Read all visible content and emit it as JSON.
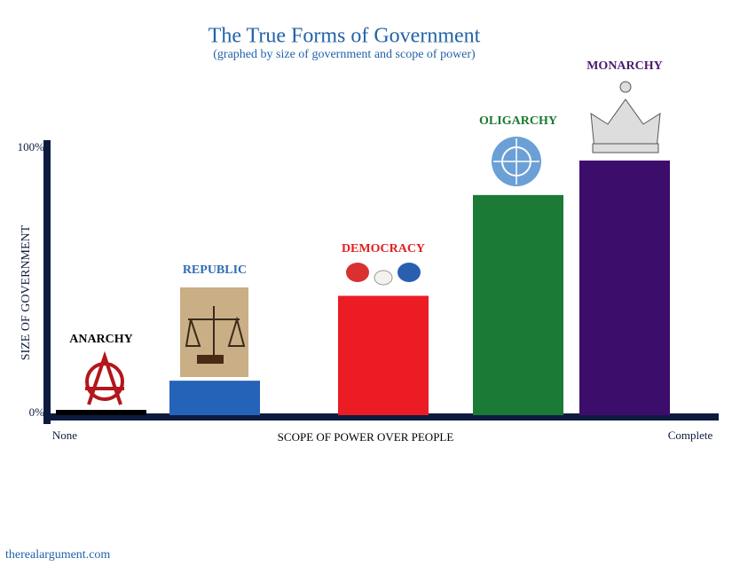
{
  "chart_data": {
    "type": "bar",
    "title": "The True Forms of Government",
    "subtitle": "(graphed by size of government and scope of power)",
    "y_label": "SIZE OF GOVERNMENT",
    "x_label": "SCOPE OF POWER OVER PEOPLE",
    "x_start_label": "None",
    "x_end_label": "Complete",
    "categories": [
      "ANARCHY",
      "REPUBLIC",
      "DEMOCRACY",
      "OLIGARCHY",
      "MONARCHY"
    ],
    "values": [
      2,
      13,
      45,
      83,
      96
    ],
    "colors": [
      "#000000",
      "#2563b8",
      "#ec1c24",
      "#1b7a35",
      "#3d0d6b"
    ],
    "label_colors": [
      "#000000",
      "#2e6db4",
      "#e02020",
      "#1a7a30",
      "#4b1a6e"
    ],
    "ylim": [
      0,
      100
    ],
    "yticks": [
      {
        "value": 0,
        "label": "0%"
      },
      {
        "value": 100,
        "label": "100%"
      }
    ],
    "grid": false
  },
  "footer": "therealargument.com"
}
